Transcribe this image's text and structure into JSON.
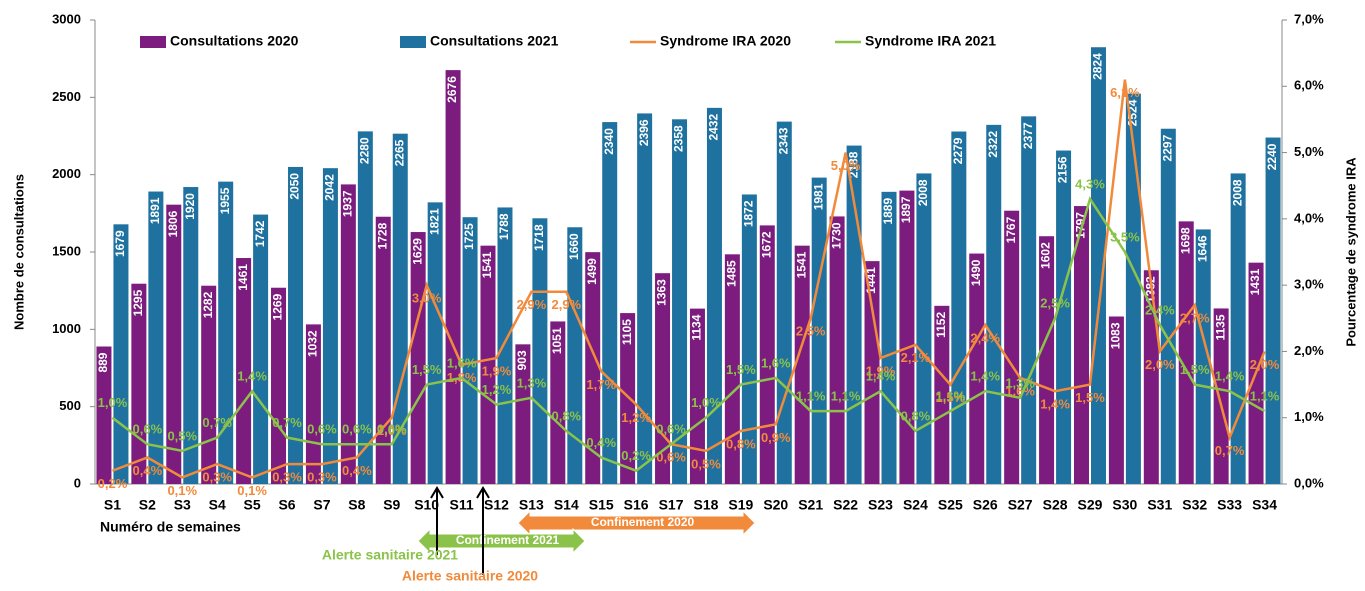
{
  "chart_data": {
    "type": "bar",
    "y_label": "Nombre de consultations",
    "y2_label": "Pourcentage de syndrome IRA",
    "x_label": "Numéro de semaines",
    "categories": [
      "S1",
      "S2",
      "S3",
      "S4",
      "S5",
      "S6",
      "S7",
      "S8",
      "S9",
      "S10",
      "S11",
      "S12",
      "S13",
      "S14",
      "S15",
      "S16",
      "S17",
      "S18",
      "S19",
      "S20",
      "S21",
      "S22",
      "S23",
      "S24",
      "S25",
      "S26",
      "S27",
      "S28",
      "S29",
      "S30",
      "S31",
      "S32",
      "S33",
      "S34"
    ],
    "series": [
      {
        "name": "Consultations 2020",
        "type": "bar",
        "color": "#7b1c7e",
        "values": [
          889,
          1295,
          1806,
          1282,
          1461,
          1269,
          1032,
          1937,
          1728,
          1629,
          2676,
          1541,
          903,
          1051,
          1499,
          1105,
          1363,
          1134,
          1485,
          1672,
          1541,
          1730,
          1441,
          1897,
          1152,
          1490,
          1767,
          1602,
          1797,
          1083,
          1382,
          1698,
          1135,
          1431
        ]
      },
      {
        "name": "Consultations 2021",
        "type": "bar",
        "color": "#1f72a0",
        "values": [
          1679,
          1891,
          1920,
          1955,
          1742,
          2050,
          2042,
          2280,
          2265,
          1821,
          1725,
          1788,
          1718,
          1660,
          2340,
          2396,
          2358,
          2432,
          1872,
          2343,
          1981,
          2188,
          1889,
          2008,
          2279,
          2322,
          2377,
          2156,
          2824,
          2524,
          2297,
          1646,
          2008,
          2240
        ]
      },
      {
        "name": "Syndrome IRA 2020",
        "type": "line",
        "axis": "y2",
        "color": "#f28a3c",
        "values": [
          0.2,
          0.4,
          0.1,
          0.3,
          0.1,
          0.3,
          0.3,
          0.4,
          1.0,
          3.0,
          1.8,
          1.9,
          2.9,
          2.9,
          1.7,
          1.2,
          0.6,
          0.5,
          0.8,
          0.9,
          2.5,
          5.0,
          1.9,
          2.1,
          1.5,
          2.4,
          1.6,
          1.4,
          1.5,
          6.1,
          2.0,
          2.7,
          0.7,
          2.0
        ],
        "value_labels": [
          "0,2%",
          "0,4%",
          "0,1%",
          "0,3%",
          "0,1%",
          "0,3%",
          "0,3%",
          "0,4%",
          "1,0%",
          "3,0%",
          "1,8%",
          "1,9%",
          "2,9%",
          "2,9%",
          "1,7%",
          "1,2%",
          "0,6%",
          "0,5%",
          "0,8%",
          "0,9%",
          "2,5%",
          "5,0%",
          "1,9%",
          "2,1%",
          "1,5%",
          "2,4%",
          "1,6%",
          "1,4%",
          "1,5%",
          "6,1%",
          "2,0%",
          "2,7%",
          "0,7%",
          "2,0%"
        ]
      },
      {
        "name": "Syndrome IRA 2021",
        "type": "line",
        "axis": "y2",
        "color": "#8bc34a",
        "values": [
          1.0,
          0.6,
          0.5,
          0.7,
          1.4,
          0.7,
          0.6,
          0.6,
          0.6,
          1.5,
          1.6,
          1.2,
          1.3,
          0.8,
          0.4,
          0.2,
          0.6,
          1.0,
          1.5,
          1.6,
          1.1,
          1.1,
          1.4,
          0.8,
          1.1,
          1.4,
          1.3,
          2.5,
          4.3,
          3.5,
          2.4,
          1.5,
          1.4,
          1.1
        ],
        "value_labels": [
          "1,0%",
          "0,6%",
          "0,5%",
          "0,7%",
          "1,4%",
          "0,7%",
          "0,6%",
          "0,6%",
          "0,6%",
          "1,5%",
          "1,6%",
          "1,2%",
          "1,3%",
          "0,8%",
          "0,4%",
          "0,2%",
          "0,6%",
          "1,0%",
          "1,5%",
          "1,6%",
          "1,1%",
          "1,1%",
          "1,4%",
          "0,8%",
          "1,1%",
          "1,4%",
          "1,3%",
          "2,5%",
          "4,3%",
          "3,5%",
          "2,4%",
          "1,5%",
          "1,4%",
          "1,1%"
        ]
      }
    ],
    "ylim": [
      0,
      3000
    ],
    "yticks": [
      0,
      500,
      1000,
      1500,
      2000,
      2500,
      3000
    ],
    "y2lim": [
      0,
      7
    ],
    "y2ticks": [
      {
        "value": 0,
        "label": "0,0%"
      },
      {
        "value": 1,
        "label": "1,0%"
      },
      {
        "value": 2,
        "label": "2,0%"
      },
      {
        "value": 3,
        "label": "3,0%"
      },
      {
        "value": 4,
        "label": "4,0%"
      },
      {
        "value": 5,
        "label": "5,0%"
      },
      {
        "value": 6,
        "label": "6,0%"
      },
      {
        "value": 7,
        "label": "7,0%"
      }
    ],
    "annotations": [
      "Confinement 2021",
      "Confinement 2020",
      "Alerte sanitaire 2021",
      "Alerte sanitaire 2020"
    ]
  }
}
